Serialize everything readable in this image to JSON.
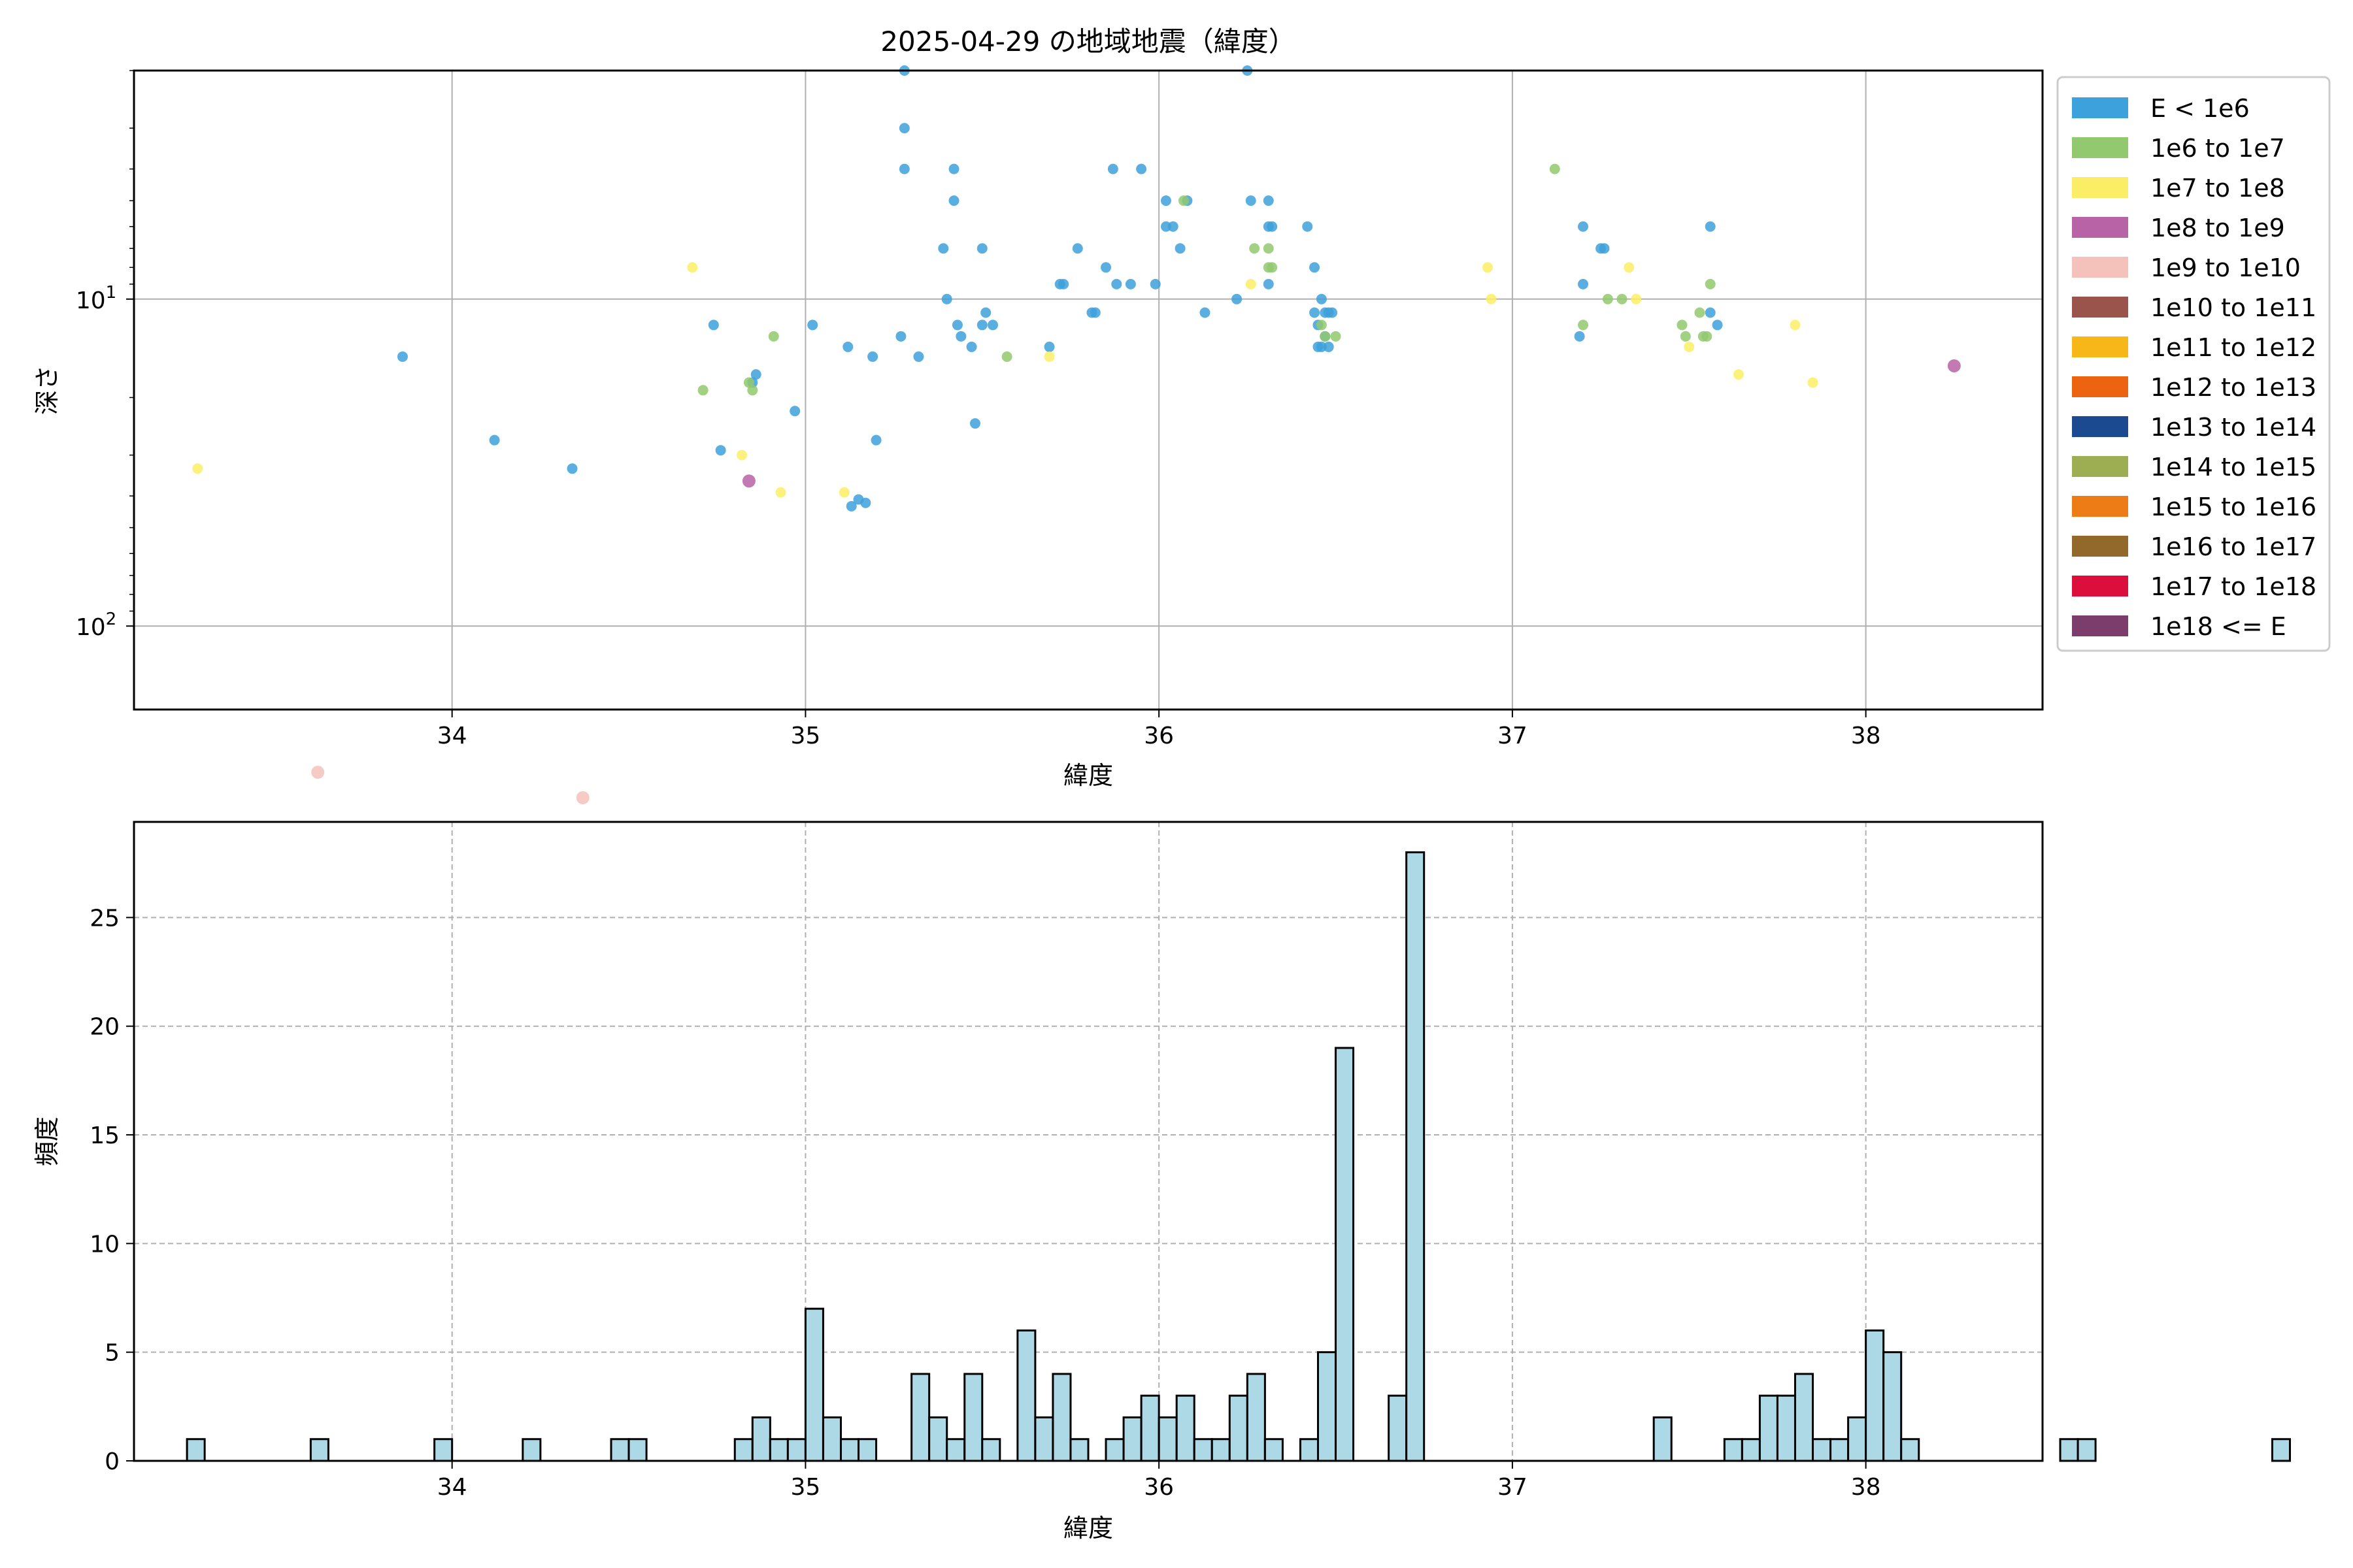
{
  "chart_data": [
    {
      "type": "scatter",
      "title": "2025-04-29 の地域地震（緯度）",
      "xlabel": "緯度",
      "ylabel": "深さ",
      "xlim": [
        33.1,
        38.5
      ],
      "ylim_inverted_log": [
        2,
        180
      ],
      "y_scale": "log",
      "y_inverted": true,
      "x_ticks": [
        "34",
        "35",
        "36",
        "37",
        "38"
      ],
      "y_ticks": [
        {
          "value": 10,
          "base": "10",
          "exp": "1"
        },
        {
          "value": 100,
          "base": "10",
          "exp": "2"
        }
      ],
      "grid": true,
      "legend_position": "outside-right",
      "legend": [
        {
          "label": "E < 1e6",
          "color": "#3da1db"
        },
        {
          "label": "1e6 to 1e7",
          "color": "#92c96e"
        },
        {
          "label": "1e7 to 1e8",
          "color": "#fbee66"
        },
        {
          "label": "1e8 to 1e9",
          "color": "#b863a5"
        },
        {
          "label": "1e9 to 1e10",
          "color": "#f5c2bb"
        },
        {
          "label": "1e10 to 1e11",
          "color": "#9a544c"
        },
        {
          "label": "1e11 to 1e12",
          "color": "#f8b719"
        },
        {
          "label": "1e12 to 1e13",
          "color": "#ec6410"
        },
        {
          "label": "1e13 to 1e14",
          "color": "#1c4a91"
        },
        {
          "label": "1e14 to 1e15",
          "color": "#9cad52"
        },
        {
          "label": "1e15 to 1e16",
          "color": "#ee7c16"
        },
        {
          "label": "1e16 to 1e17",
          "color": "#92692b"
        },
        {
          "label": "1e17 to 1e18",
          "color": "#dc0e3c"
        },
        {
          "label": "1e18 <= E",
          "color": "#7d3d6c"
        }
      ],
      "series": [
        {
          "class": 0,
          "points": [
            [
              33.86,
              15
            ],
            [
              34.12,
              27
            ],
            [
              34.34,
              33
            ],
            [
              34.74,
              12
            ],
            [
              34.76,
              29
            ],
            [
              34.85,
              18
            ],
            [
              34.86,
              17
            ],
            [
              34.97,
              22
            ],
            [
              35.02,
              12
            ],
            [
              35.12,
              14
            ],
            [
              35.13,
              43
            ],
            [
              35.15,
              41
            ],
            [
              35.17,
              42
            ],
            [
              35.19,
              15
            ],
            [
              35.2,
              27
            ],
            [
              35.27,
              13
            ],
            [
              35.28,
              2
            ],
            [
              35.28,
              3
            ],
            [
              35.28,
              4
            ],
            [
              35.32,
              15
            ],
            [
              35.39,
              7
            ],
            [
              35.4,
              10
            ],
            [
              35.42,
              4
            ],
            [
              35.42,
              5
            ],
            [
              35.43,
              12
            ],
            [
              35.44,
              13
            ],
            [
              35.47,
              14
            ],
            [
              35.48,
              24
            ],
            [
              35.5,
              7
            ],
            [
              35.5,
              12
            ],
            [
              35.51,
              11
            ],
            [
              35.53,
              12
            ],
            [
              35.69,
              14
            ],
            [
              35.72,
              9
            ],
            [
              35.73,
              9
            ],
            [
              35.77,
              7
            ],
            [
              35.81,
              11
            ],
            [
              35.82,
              11
            ],
            [
              35.85,
              8
            ],
            [
              35.87,
              4
            ],
            [
              35.88,
              9
            ],
            [
              35.92,
              9
            ],
            [
              35.95,
              4
            ],
            [
              35.99,
              9
            ],
            [
              36.02,
              5
            ],
            [
              36.02,
              6
            ],
            [
              36.04,
              6
            ],
            [
              36.06,
              7
            ],
            [
              36.08,
              5
            ],
            [
              36.13,
              11
            ],
            [
              36.22,
              10
            ],
            [
              36.25,
              2
            ],
            [
              36.26,
              5
            ],
            [
              36.31,
              5
            ],
            [
              36.31,
              6
            ],
            [
              36.31,
              9
            ],
            [
              36.32,
              6
            ],
            [
              36.42,
              6
            ],
            [
              36.44,
              8
            ],
            [
              36.44,
              11
            ],
            [
              36.45,
              12
            ],
            [
              36.45,
              14
            ],
            [
              36.46,
              10
            ],
            [
              36.46,
              14
            ],
            [
              36.47,
              11
            ],
            [
              36.47,
              13
            ],
            [
              36.48,
              11
            ],
            [
              36.48,
              14
            ],
            [
              36.49,
              11
            ],
            [
              37.19,
              13
            ],
            [
              37.2,
              6
            ],
            [
              37.2,
              9
            ],
            [
              37.25,
              7
            ],
            [
              37.26,
              7
            ],
            [
              37.56,
              6
            ],
            [
              37.56,
              11
            ],
            [
              37.58,
              12
            ]
          ]
        },
        {
          "class": 1,
          "points": [
            [
              34.71,
              19
            ],
            [
              34.84,
              18
            ],
            [
              34.85,
              19
            ],
            [
              34.91,
              13
            ],
            [
              35.57,
              15
            ],
            [
              36.07,
              5
            ],
            [
              36.27,
              7
            ],
            [
              36.31,
              7
            ],
            [
              36.31,
              8
            ],
            [
              36.32,
              8
            ],
            [
              36.46,
              12
            ],
            [
              36.47,
              13
            ],
            [
              36.5,
              13
            ],
            [
              37.12,
              4
            ],
            [
              37.2,
              12
            ],
            [
              37.27,
              10
            ],
            [
              37.31,
              10
            ],
            [
              37.48,
              12
            ],
            [
              37.49,
              13
            ],
            [
              37.53,
              11
            ],
            [
              37.54,
              13
            ],
            [
              37.55,
              13
            ],
            [
              37.56,
              9
            ]
          ]
        },
        {
          "class": 2,
          "points": [
            [
              33.28,
              33
            ],
            [
              34.68,
              8
            ],
            [
              34.82,
              30
            ],
            [
              34.93,
              39
            ],
            [
              35.11,
              39
            ],
            [
              35.69,
              15
            ],
            [
              36.26,
              9
            ],
            [
              36.93,
              8
            ],
            [
              36.94,
              10
            ],
            [
              37.33,
              8
            ],
            [
              37.35,
              10
            ],
            [
              37.5,
              14
            ],
            [
              37.64,
              17
            ],
            [
              37.8,
              12
            ],
            [
              37.85,
              18
            ]
          ]
        },
        {
          "class": 3,
          "points": [
            [
              34.84,
              36
            ],
            [
              38.25,
              16
            ]
          ]
        },
        {
          "class": 4,
          "points": [
            [
              33.62,
              280
            ],
            [
              34.37,
              335
            ]
          ]
        }
      ]
    },
    {
      "type": "bar",
      "xlabel": "緯度",
      "ylabel": "頻度",
      "xlim": [
        33.1,
        38.5
      ],
      "ylim": [
        0,
        29.4
      ],
      "x_ticks": [
        "34",
        "35",
        "36",
        "37",
        "38"
      ],
      "y_ticks": [
        "0",
        "5",
        "10",
        "15",
        "20",
        "25"
      ],
      "grid": true,
      "bar_color": "#add8e6",
      "bin_start": 33.25,
      "bin_width": 0.05,
      "counts": [
        1,
        0,
        0,
        0,
        0,
        0,
        0,
        1,
        0,
        0,
        0,
        0,
        0,
        0,
        1,
        0,
        0,
        0,
        0,
        1,
        0,
        0,
        0,
        0,
        1,
        1,
        0,
        0,
        0,
        0,
        0,
        1,
        2,
        1,
        1,
        7,
        2,
        1,
        1,
        0,
        0,
        4,
        2,
        1,
        4,
        1,
        0,
        6,
        2,
        4,
        1,
        0,
        1,
        2,
        3,
        2,
        3,
        1,
        1,
        3,
        4,
        1,
        0,
        1,
        5,
        19,
        0,
        0,
        3,
        28,
        0,
        0,
        0,
        0,
        0,
        0,
        0,
        0,
        0,
        0,
        0,
        0,
        0,
        2,
        0,
        0,
        0,
        1,
        1,
        3,
        3,
        4,
        1,
        1,
        2,
        6,
        5,
        1,
        0,
        0,
        0,
        0,
        0,
        0,
        0,
        0,
        1,
        1,
        0,
        0,
        0,
        0,
        0,
        0,
        0,
        0,
        0,
        0,
        1
      ]
    }
  ]
}
